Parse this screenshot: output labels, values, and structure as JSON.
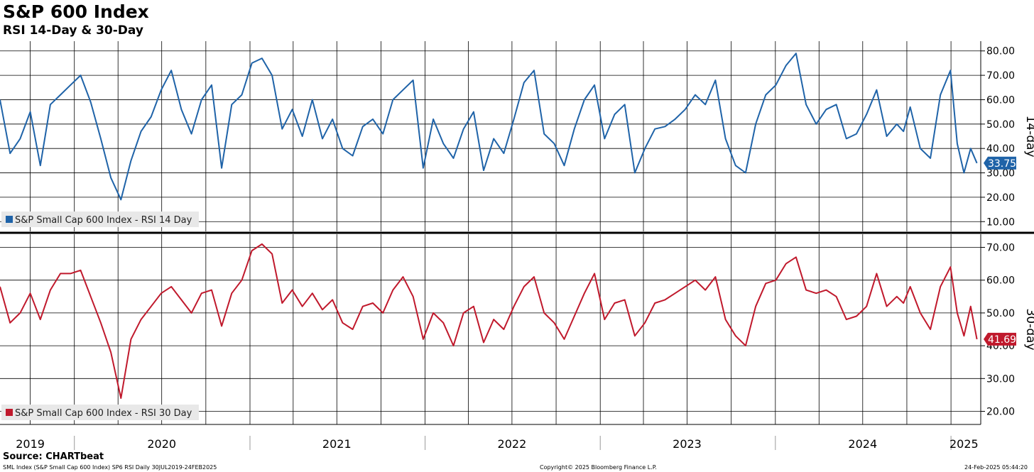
{
  "title": "S&P 600 Index",
  "subtitle": "RSI 14-Day & 30-Day",
  "source_label": "Source: CHARTbeat",
  "footer": {
    "left": "SML Index (S&P Small Cap 600 Index) SP6 RSI  Daily 30JUL2019-24FEB2025",
    "center": "Copyright© 2025 Bloomberg Finance L.P.",
    "right": "24-Feb-2025 05:44:20"
  },
  "colors": {
    "rsi14": "#1f63a8",
    "rsi30": "#c0192c",
    "grid": "#000000",
    "legend_bg": "#e8e8e8"
  },
  "chart_data": [
    {
      "type": "line",
      "panel": "top",
      "axis_title": "14-day",
      "ylim": [
        6,
        84
      ],
      "yticks": [
        10,
        20,
        30,
        40,
        50,
        60,
        70,
        80
      ],
      "ytick_labels": [
        "10.00",
        "20.00",
        "30.00",
        "40.00",
        "50.00",
        "60.00",
        "70.00",
        "80.00"
      ],
      "grid": true,
      "legend": "bottom-left",
      "last_value_label": "33.75",
      "series": [
        {
          "name": "S&P Small Cap 600 Index - RSI 14 Day",
          "x": [
            "2019-07-30",
            "2019-08-20",
            "2019-09-10",
            "2019-10-01",
            "2019-10-22",
            "2019-11-12",
            "2019-12-03",
            "2019-12-24",
            "2020-01-14",
            "2020-02-04",
            "2020-02-25",
            "2020-03-17",
            "2020-04-07",
            "2020-04-28",
            "2020-05-19",
            "2020-06-09",
            "2020-06-30",
            "2020-07-21",
            "2020-08-11",
            "2020-09-01",
            "2020-09-22",
            "2020-10-13",
            "2020-11-03",
            "2020-11-24",
            "2020-12-15",
            "2021-01-05",
            "2021-01-26",
            "2021-02-16",
            "2021-03-09",
            "2021-03-30",
            "2021-04-20",
            "2021-05-11",
            "2021-06-01",
            "2021-06-22",
            "2021-07-13",
            "2021-08-03",
            "2021-08-24",
            "2021-09-14",
            "2021-10-05",
            "2021-10-26",
            "2021-11-16",
            "2021-12-07",
            "2021-12-28",
            "2022-01-18",
            "2022-02-08",
            "2022-03-01",
            "2022-03-22",
            "2022-04-12",
            "2022-05-03",
            "2022-05-24",
            "2022-06-14",
            "2022-07-05",
            "2022-07-26",
            "2022-08-16",
            "2022-09-06",
            "2022-09-27",
            "2022-10-18",
            "2022-11-08",
            "2022-11-29",
            "2022-12-20",
            "2023-01-10",
            "2023-01-31",
            "2023-02-21",
            "2023-03-14",
            "2023-04-04",
            "2023-04-25",
            "2023-05-16",
            "2023-06-06",
            "2023-06-27",
            "2023-07-18",
            "2023-08-08",
            "2023-08-29",
            "2023-09-19",
            "2023-10-10",
            "2023-10-31",
            "2023-11-21",
            "2023-12-12",
            "2024-01-02",
            "2024-01-23",
            "2024-02-13",
            "2024-03-05",
            "2024-03-26",
            "2024-04-16",
            "2024-05-07",
            "2024-05-28",
            "2024-06-18",
            "2024-07-09",
            "2024-07-30",
            "2024-08-20",
            "2024-09-10",
            "2024-09-24",
            "2024-10-08",
            "2024-10-29",
            "2024-11-19",
            "2024-12-10",
            "2024-12-31",
            "2025-01-14",
            "2025-01-28",
            "2025-02-11",
            "2025-02-24"
          ],
          "values": [
            60,
            38,
            44,
            55,
            33,
            58,
            62,
            66,
            70,
            59,
            44,
            28,
            19,
            35,
            47,
            53,
            64,
            72,
            56,
            46,
            60,
            66,
            32,
            58,
            62,
            75,
            77,
            70,
            48,
            56,
            45,
            60,
            44,
            52,
            40,
            37,
            49,
            52,
            46,
            60,
            64,
            68,
            32,
            52,
            42,
            36,
            48,
            55,
            31,
            44,
            38,
            52,
            67,
            72,
            46,
            42,
            33,
            48,
            60,
            66,
            44,
            54,
            58,
            30,
            40,
            48,
            49,
            52,
            56,
            62,
            58,
            68,
            44,
            33,
            30,
            50,
            62,
            66,
            74,
            79,
            58,
            50,
            56,
            58,
            44,
            46,
            54,
            64,
            45,
            50,
            47,
            57,
            40,
            36,
            62,
            72,
            42,
            30,
            40,
            34
          ]
        }
      ]
    },
    {
      "type": "line",
      "panel": "bottom",
      "axis_title": "30-day",
      "ylim": [
        16,
        74
      ],
      "yticks": [
        20,
        30,
        40,
        50,
        60,
        70
      ],
      "ytick_labels": [
        "20.00",
        "30.00",
        "40.00",
        "50.00",
        "60.00",
        "70.00"
      ],
      "grid": true,
      "legend": "bottom-left",
      "last_value_label": "41.69",
      "series": [
        {
          "name": "S&P Small Cap 600 Index - RSI 30 Day",
          "x": [
            "2019-07-30",
            "2019-08-20",
            "2019-09-10",
            "2019-10-01",
            "2019-10-22",
            "2019-11-12",
            "2019-12-03",
            "2019-12-24",
            "2020-01-14",
            "2020-02-04",
            "2020-02-25",
            "2020-03-17",
            "2020-04-07",
            "2020-04-28",
            "2020-05-19",
            "2020-06-09",
            "2020-06-30",
            "2020-07-21",
            "2020-08-11",
            "2020-09-01",
            "2020-09-22",
            "2020-10-13",
            "2020-11-03",
            "2020-11-24",
            "2020-12-15",
            "2021-01-05",
            "2021-01-26",
            "2021-02-16",
            "2021-03-09",
            "2021-03-30",
            "2021-04-20",
            "2021-05-11",
            "2021-06-01",
            "2021-06-22",
            "2021-07-13",
            "2021-08-03",
            "2021-08-24",
            "2021-09-14",
            "2021-10-05",
            "2021-10-26",
            "2021-11-16",
            "2021-12-07",
            "2021-12-28",
            "2022-01-18",
            "2022-02-08",
            "2022-03-01",
            "2022-03-22",
            "2022-04-12",
            "2022-05-03",
            "2022-05-24",
            "2022-06-14",
            "2022-07-05",
            "2022-07-26",
            "2022-08-16",
            "2022-09-06",
            "2022-09-27",
            "2022-10-18",
            "2022-11-08",
            "2022-11-29",
            "2022-12-20",
            "2023-01-10",
            "2023-01-31",
            "2023-02-21",
            "2023-03-14",
            "2023-04-04",
            "2023-04-25",
            "2023-05-16",
            "2023-06-06",
            "2023-06-27",
            "2023-07-18",
            "2023-08-08",
            "2023-08-29",
            "2023-09-19",
            "2023-10-10",
            "2023-10-31",
            "2023-11-21",
            "2023-12-12",
            "2024-01-02",
            "2024-01-23",
            "2024-02-13",
            "2024-03-05",
            "2024-03-26",
            "2024-04-16",
            "2024-05-07",
            "2024-05-28",
            "2024-06-18",
            "2024-07-09",
            "2024-07-30",
            "2024-08-20",
            "2024-09-10",
            "2024-09-24",
            "2024-10-08",
            "2024-10-29",
            "2024-11-19",
            "2024-12-10",
            "2024-12-31",
            "2025-01-14",
            "2025-01-28",
            "2025-02-11",
            "2025-02-24"
          ],
          "values": [
            58,
            47,
            50,
            56,
            48,
            57,
            62,
            62,
            63,
            55,
            47,
            38,
            24,
            42,
            48,
            52,
            56,
            58,
            54,
            50,
            56,
            57,
            46,
            56,
            60,
            69,
            71,
            68,
            53,
            57,
            52,
            56,
            51,
            54,
            47,
            45,
            52,
            53,
            50,
            57,
            61,
            55,
            42,
            50,
            47,
            40,
            50,
            52,
            41,
            48,
            45,
            52,
            58,
            61,
            50,
            47,
            42,
            49,
            56,
            62,
            48,
            53,
            54,
            43,
            47,
            53,
            54,
            56,
            58,
            60,
            57,
            61,
            48,
            43,
            40,
            52,
            59,
            60,
            65,
            67,
            57,
            56,
            57,
            55,
            48,
            49,
            52,
            62,
            52,
            55,
            53,
            58,
            50,
            45,
            58,
            64,
            50,
            43,
            52,
            42
          ]
        }
      ]
    }
  ],
  "x_axis": {
    "year_labels": [
      "2019",
      "2020",
      "2021",
      "2022",
      "2023",
      "2024",
      "2025"
    ],
    "year_dates": [
      "2019-10-01",
      "2020-07-01",
      "2021-07-01",
      "2022-07-01",
      "2023-07-01",
      "2024-07-01",
      "2025-01-28"
    ],
    "year_boundaries": [
      "2020-01-01",
      "2021-01-01",
      "2022-01-01",
      "2023-01-01",
      "2024-01-01",
      "2025-01-01"
    ],
    "quarter_gridlines": true
  }
}
